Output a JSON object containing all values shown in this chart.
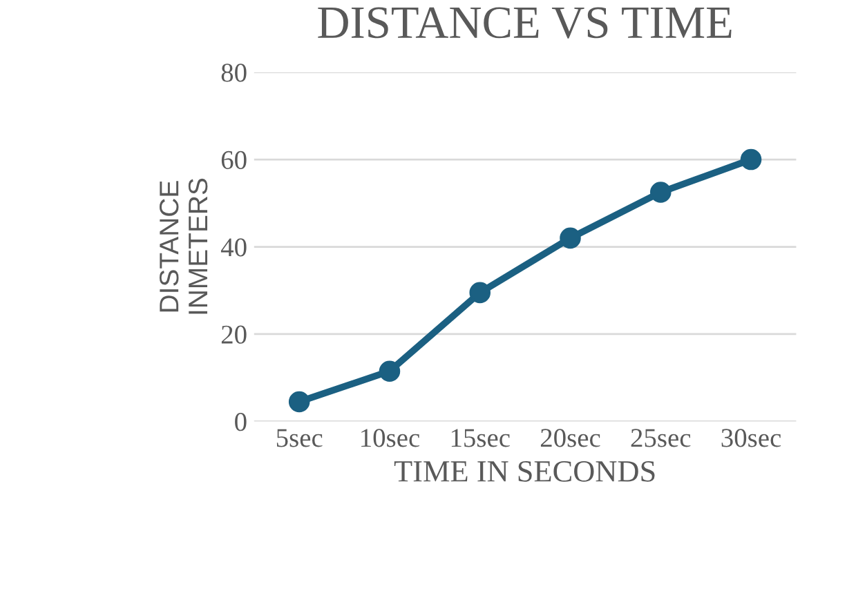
{
  "chart_data": {
    "type": "line",
    "title": "DISTANCE VS TIME",
    "xlabel": "TIME IN SECONDS",
    "ylabel": "DISTANCE\nINMETERS",
    "categories": [
      "5sec",
      "10sec",
      "15sec",
      "20sec",
      "25sec",
      "30sec"
    ],
    "series": [
      {
        "color": "#1b6082",
        "values": [
          4.5,
          11.5,
          29.5,
          42,
          52.5,
          60
        ]
      }
    ],
    "ylim": [
      0,
      80
    ],
    "yticks": [
      0,
      20,
      40,
      60,
      80
    ],
    "grid": "y",
    "marker": "circle",
    "line_style": "solid"
  }
}
